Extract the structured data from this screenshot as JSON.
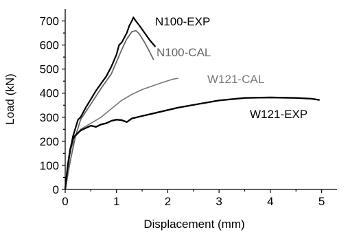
{
  "chart_data": {
    "type": "line",
    "title": "",
    "xlabel": "Displacement (mm)",
    "ylabel": "Load (kN)",
    "xlim": [
      0,
      5.3
    ],
    "ylim": [
      0,
      750
    ],
    "xticks": [
      0,
      1,
      2,
      3,
      4,
      5
    ],
    "yticks": [
      0,
      100,
      200,
      300,
      400,
      500,
      600,
      700
    ],
    "grid": false,
    "legend": "none",
    "series": [
      {
        "name": "N100-EXP",
        "color": "#000000",
        "points": [
          [
            0,
            0
          ],
          [
            0.03,
            60
          ],
          [
            0.08,
            140
          ],
          [
            0.15,
            220
          ],
          [
            0.25,
            290
          ],
          [
            0.3,
            300
          ],
          [
            0.4,
            340
          ],
          [
            0.5,
            375
          ],
          [
            0.6,
            410
          ],
          [
            0.7,
            440
          ],
          [
            0.8,
            470
          ],
          [
            0.9,
            510
          ],
          [
            1.0,
            560
          ],
          [
            1.05,
            600
          ],
          [
            1.1,
            610
          ],
          [
            1.2,
            650
          ],
          [
            1.25,
            680
          ],
          [
            1.3,
            700
          ],
          [
            1.33,
            715
          ],
          [
            1.36,
            705
          ],
          [
            1.45,
            680
          ],
          [
            1.55,
            650
          ],
          [
            1.65,
            620
          ],
          [
            1.75,
            595
          ]
        ]
      },
      {
        "name": "N100-CAL",
        "color": "#666666",
        "points": [
          [
            0,
            0
          ],
          [
            0.1,
            120
          ],
          [
            0.2,
            220
          ],
          [
            0.3,
            290
          ],
          [
            0.5,
            355
          ],
          [
            0.7,
            420
          ],
          [
            0.9,
            480
          ],
          [
            1.0,
            530
          ],
          [
            1.1,
            580
          ],
          [
            1.2,
            625
          ],
          [
            1.3,
            655
          ],
          [
            1.38,
            660
          ],
          [
            1.45,
            645
          ],
          [
            1.55,
            610
          ],
          [
            1.65,
            570
          ],
          [
            1.72,
            540
          ]
        ]
      },
      {
        "name": "W121-CAL",
        "color": "#777777",
        "points": [
          [
            0,
            0
          ],
          [
            0.05,
            80
          ],
          [
            0.1,
            160
          ],
          [
            0.2,
            220
          ],
          [
            0.3,
            250
          ],
          [
            0.5,
            275
          ],
          [
            0.7,
            300
          ],
          [
            0.9,
            335
          ],
          [
            1.1,
            370
          ],
          [
            1.3,
            395
          ],
          [
            1.5,
            415
          ],
          [
            1.7,
            430
          ],
          [
            1.9,
            445
          ],
          [
            2.1,
            458
          ],
          [
            2.2,
            462
          ]
        ]
      },
      {
        "name": "W121-EXP",
        "color": "#000000",
        "points": [
          [
            0,
            0
          ],
          [
            0.05,
            100
          ],
          [
            0.1,
            170
          ],
          [
            0.15,
            210
          ],
          [
            0.2,
            225
          ],
          [
            0.25,
            235
          ],
          [
            0.3,
            245
          ],
          [
            0.4,
            255
          ],
          [
            0.5,
            265
          ],
          [
            0.6,
            260
          ],
          [
            0.7,
            270
          ],
          [
            0.8,
            275
          ],
          [
            0.9,
            285
          ],
          [
            1.0,
            290
          ],
          [
            1.1,
            288
          ],
          [
            1.2,
            280
          ],
          [
            1.3,
            295
          ],
          [
            1.5,
            305
          ],
          [
            1.8,
            320
          ],
          [
            2.2,
            340
          ],
          [
            2.6,
            355
          ],
          [
            3.0,
            370
          ],
          [
            3.5,
            380
          ],
          [
            4.0,
            382
          ],
          [
            4.5,
            380
          ],
          [
            4.8,
            377
          ],
          [
            4.95,
            372
          ]
        ]
      }
    ]
  }
}
